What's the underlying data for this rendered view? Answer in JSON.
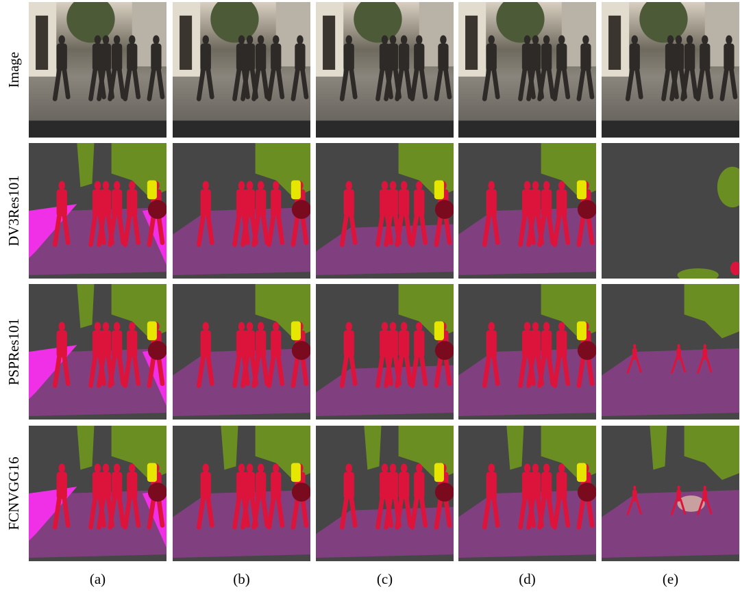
{
  "row_labels": [
    "Image",
    "DV3Res101",
    "PSPRes101",
    "FCNVGG16"
  ],
  "column_labels": [
    "(a)",
    "(b)",
    "(c)",
    "(d)",
    "(e)"
  ]
}
